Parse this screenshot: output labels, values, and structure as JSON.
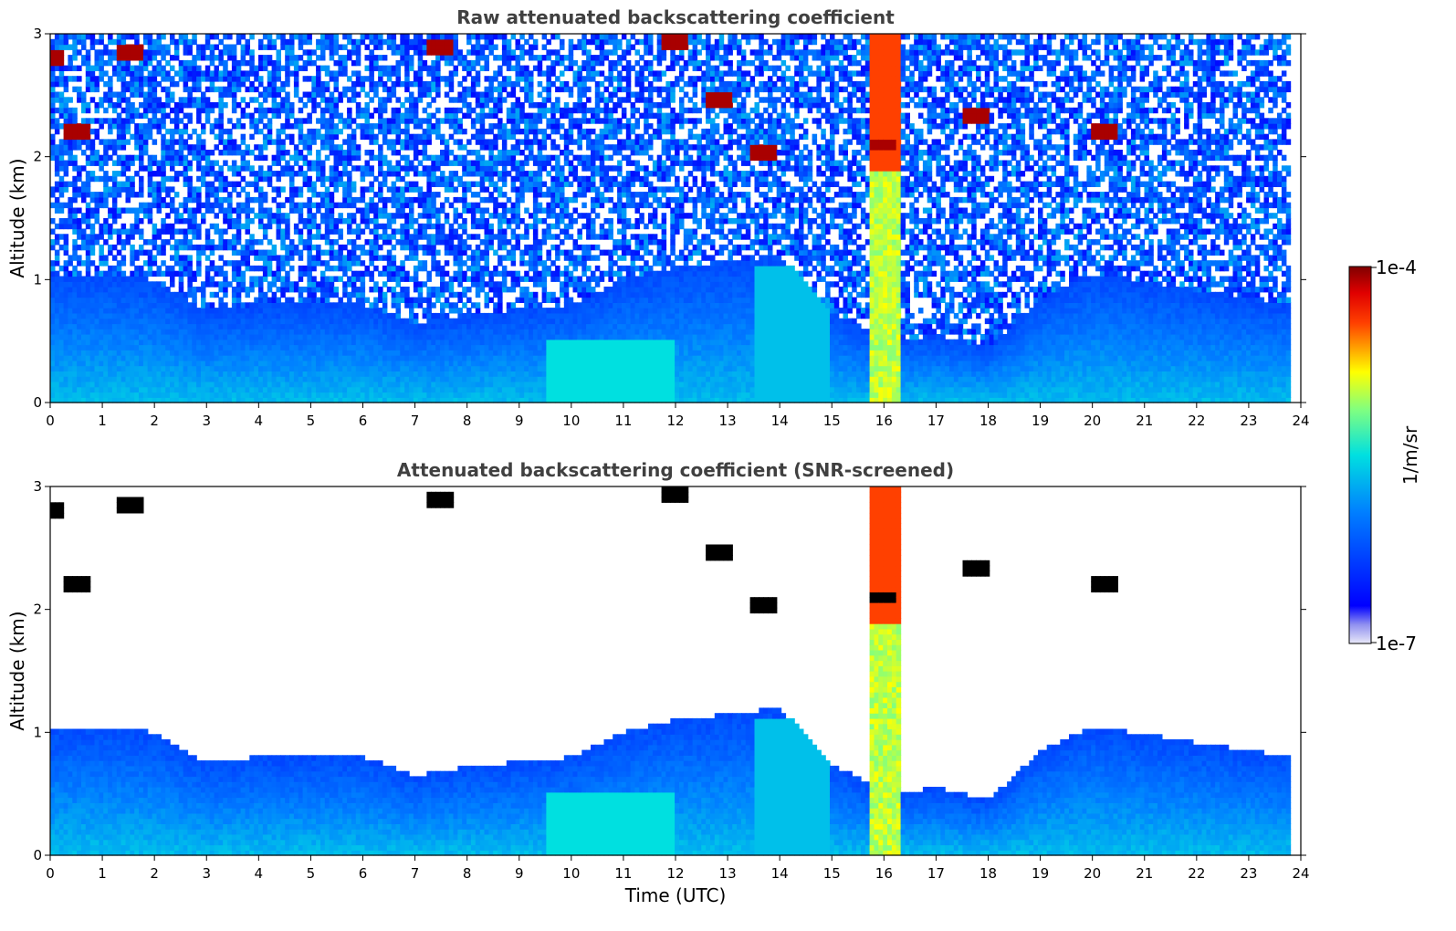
{
  "chart_data": [
    {
      "type": "heatmap",
      "title": "Raw attenuated backscattering coefficient",
      "xlabel": "",
      "ylabel": "Altitude (km)",
      "xlim": [
        0,
        24
      ],
      "ylim": [
        0,
        3
      ],
      "xticks": [
        "0",
        "1",
        "2",
        "3",
        "4",
        "5",
        "6",
        "7",
        "8",
        "9",
        "10",
        "11",
        "12",
        "13",
        "14",
        "15",
        "16",
        "17",
        "18",
        "19",
        "20",
        "21",
        "22",
        "23",
        "24"
      ],
      "yticks": [
        "0",
        "1",
        "2",
        "3"
      ],
      "screened": false,
      "cloud_base_km": [
        {
          "t": 0,
          "km": 2.8
        },
        {
          "t": 0.5,
          "km": 2.2
        },
        {
          "t": 1.5,
          "km": 2.85
        },
        {
          "t": 7.5,
          "km": 2.88
        },
        {
          "t": 12,
          "km": 2.95
        },
        {
          "t": 12.8,
          "km": 2.45
        },
        {
          "t": 13.7,
          "km": 2.05
        },
        {
          "t": 16,
          "km": 2.1
        },
        {
          "t": 17.8,
          "km": 2.35
        },
        {
          "t": 20.2,
          "km": 2.2
        }
      ]
    },
    {
      "type": "heatmap",
      "title": "Attenuated backscattering coefficient (SNR-screened)",
      "xlabel": "Time (UTC)",
      "ylabel": "Altitude (km)",
      "xlim": [
        0,
        24
      ],
      "ylim": [
        0,
        3
      ],
      "xticks": [
        "0",
        "1",
        "2",
        "3",
        "4",
        "5",
        "6",
        "7",
        "8",
        "9",
        "10",
        "11",
        "12",
        "13",
        "14",
        "15",
        "16",
        "17",
        "18",
        "19",
        "20",
        "21",
        "22",
        "23",
        "24"
      ],
      "yticks": [
        "0",
        "1",
        "2",
        "3"
      ],
      "screened": true,
      "boundary_layer_top_km": [
        {
          "t": 0,
          "km": 1.05
        },
        {
          "t": 1,
          "km": 1.05
        },
        {
          "t": 2,
          "km": 1.0
        },
        {
          "t": 3,
          "km": 0.75
        },
        {
          "t": 4,
          "km": 0.8
        },
        {
          "t": 6,
          "km": 0.8
        },
        {
          "t": 7,
          "km": 0.65
        },
        {
          "t": 8,
          "km": 0.72
        },
        {
          "t": 10,
          "km": 0.8
        },
        {
          "t": 11,
          "km": 1.0
        },
        {
          "t": 12,
          "km": 1.1
        },
        {
          "t": 14,
          "km": 1.2
        },
        {
          "t": 15,
          "km": 0.75
        },
        {
          "t": 16,
          "km": 0.5
        },
        {
          "t": 17,
          "km": 0.55
        },
        {
          "t": 18,
          "km": 0.45
        },
        {
          "t": 19,
          "km": 0.85
        },
        {
          "t": 20,
          "km": 1.05
        },
        {
          "t": 23.8,
          "km": 0.8
        }
      ]
    }
  ],
  "colorbar": {
    "label": "1/m/sr",
    "max_label": "1e-4",
    "min_label": "1e-7",
    "range": [
      1e-07,
      0.0001
    ],
    "scale": "log",
    "colormap": "jet",
    "colors": [
      "#e8e8f8",
      "#0000ff",
      "#00ffff",
      "#ffff00",
      "#ff0000",
      "#800000"
    ]
  }
}
